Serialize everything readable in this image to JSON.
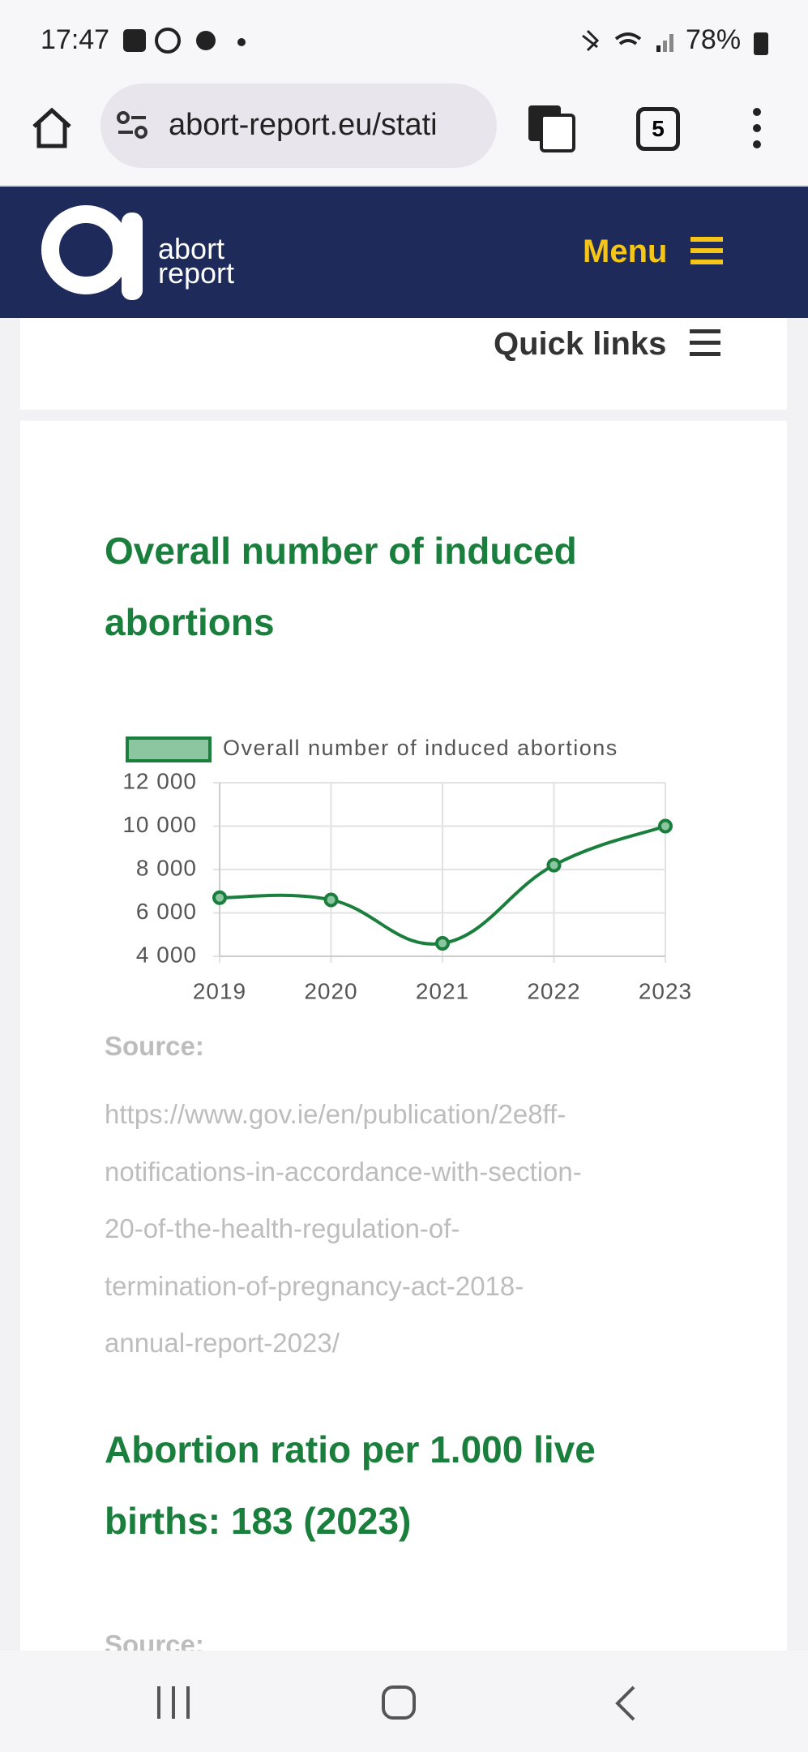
{
  "status": {
    "time": "17:47",
    "battery": "78%"
  },
  "browser": {
    "url": "abort-report.eu/stati",
    "tabs": "5"
  },
  "header": {
    "logo_line1": "abort",
    "logo_line2": "report",
    "menu": "Menu"
  },
  "quick_links": "Quick links",
  "section1": {
    "title": "Overall number of induced abortions",
    "source_label": "Source:",
    "source_lines": [
      "https://www.gov.ie/en/publication/2e8ff-",
      "notifications-in-accordance-with-section-",
      "20-of-the-health-regulation-of-",
      "termination-of-pregnancy-act-2018-",
      "annual-report-2023/"
    ]
  },
  "chart_data": {
    "type": "line",
    "categories": [
      "2019",
      "2020",
      "2021",
      "2022",
      "2023"
    ],
    "series": [
      {
        "name": "Overall number of induced abortions",
        "color": "#1a7f3c",
        "values": [
          6700,
          6600,
          4600,
          8200,
          10000
        ]
      }
    ],
    "ylim": [
      4000,
      12000
    ],
    "yticks": [
      {
        "value": 4000,
        "label": "4 000"
      },
      {
        "value": 6000,
        "label": "6 000"
      },
      {
        "value": 8000,
        "label": "8 000"
      },
      {
        "value": 10000,
        "label": "10 000"
      },
      {
        "value": 12000,
        "label": "12 000"
      }
    ],
    "grid": true,
    "legend": "top"
  },
  "section2": {
    "title": "Abortion ratio per 1.000 live births: 183 (2023)",
    "source_label": "Source:"
  }
}
